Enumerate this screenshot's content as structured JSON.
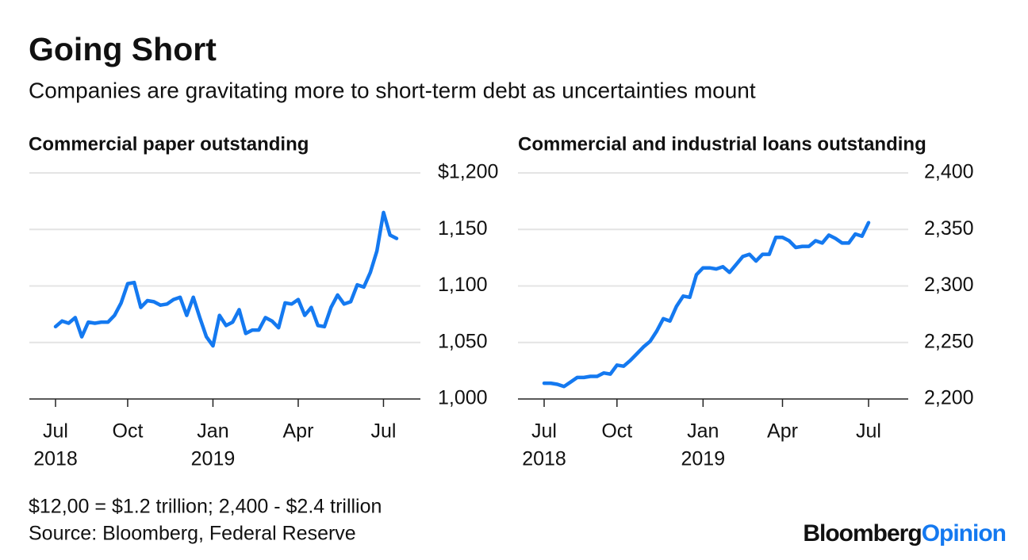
{
  "title": "Going Short",
  "subtitle": "Companies are gravitating more to short-term debt as uncertainties mount",
  "note": "$12,00 = $1.2 trillion; 2,400 - $2.4 trillion",
  "source": "Source: Bloomberg, Federal Reserve",
  "brand": {
    "name": "Bloomberg",
    "section": "Opinion"
  },
  "chart_data": [
    {
      "type": "line",
      "title": "Commercial paper outstanding",
      "color": "#1479f0",
      "grid": true,
      "categories": [
        "Jul",
        null,
        null,
        null,
        null,
        null,
        null,
        null,
        null,
        null,
        null,
        "Oct",
        null,
        null,
        null,
        null,
        null,
        null,
        null,
        null,
        null,
        null,
        null,
        null,
        "Jan",
        null,
        null,
        null,
        null,
        null,
        null,
        null,
        null,
        null,
        null,
        null,
        null,
        "Apr",
        null,
        null,
        null,
        null,
        null,
        null,
        null,
        null,
        null,
        null,
        null,
        null,
        "Jul",
        null,
        null
      ],
      "year_ticks": [
        {
          "value": 0,
          "label": "2018"
        },
        {
          "value": 24,
          "label": "2019"
        }
      ],
      "values": [
        1064,
        1069,
        1067,
        1072,
        1055,
        1068,
        1067,
        1068,
        1068,
        1074,
        1085,
        1102,
        1103,
        1081,
        1087,
        1086,
        1083,
        1084,
        1088,
        1090,
        1074,
        1090,
        1072,
        1055,
        1047,
        1074,
        1065,
        1068,
        1079,
        1058,
        1061,
        1061,
        1072,
        1069,
        1063,
        1085,
        1084,
        1088,
        1074,
        1081,
        1065,
        1064,
        1081,
        1092,
        1084,
        1086,
        1101,
        1099,
        1112,
        1131,
        1165,
        1145,
        1142
      ],
      "ylim": [
        1000,
        1200
      ],
      "yticks": [
        {
          "value": 1000,
          "label": "1,000"
        },
        {
          "value": 1050,
          "label": "1,050"
        },
        {
          "value": 1100,
          "label": "1,100"
        },
        {
          "value": 1150,
          "label": "1,150"
        },
        {
          "value": 1200,
          "label": "$1,200"
        }
      ]
    },
    {
      "type": "line",
      "title": "Commercial and industrial loans outstanding",
      "color": "#1479f0",
      "grid": true,
      "categories": [
        "Jul",
        null,
        null,
        null,
        null,
        null,
        null,
        null,
        null,
        null,
        null,
        "Oct",
        null,
        null,
        null,
        null,
        null,
        null,
        null,
        null,
        null,
        null,
        null,
        null,
        "Jan",
        null,
        null,
        null,
        null,
        null,
        null,
        null,
        null,
        null,
        null,
        null,
        "Apr",
        null,
        null,
        null,
        null,
        null,
        null,
        null,
        null,
        null,
        null,
        null,
        null,
        "Jul"
      ],
      "year_ticks": [
        {
          "value": 0,
          "label": "2018"
        },
        {
          "value": 24,
          "label": "2019"
        }
      ],
      "values": [
        2214,
        2214,
        2213,
        2211,
        2215,
        2219,
        2219,
        2220,
        2220,
        2223,
        2222,
        2230,
        2229,
        2234,
        2240,
        2246,
        2251,
        2260,
        2271,
        2269,
        2282,
        2291,
        2290,
        2310,
        2316,
        2316,
        2315,
        2317,
        2312,
        2319,
        2326,
        2328,
        2322,
        2328,
        2328,
        2343,
        2343,
        2340,
        2334,
        2335,
        2335,
        2340,
        2338,
        2345,
        2342,
        2338,
        2338,
        2346,
        2344,
        2356
      ],
      "ylim": [
        2200,
        2400
      ],
      "yticks": [
        {
          "value": 2200,
          "label": "2,200"
        },
        {
          "value": 2250,
          "label": "2,250"
        },
        {
          "value": 2300,
          "label": "2,300"
        },
        {
          "value": 2350,
          "label": "2,350"
        },
        {
          "value": 2400,
          "label": "2,400"
        }
      ]
    }
  ]
}
